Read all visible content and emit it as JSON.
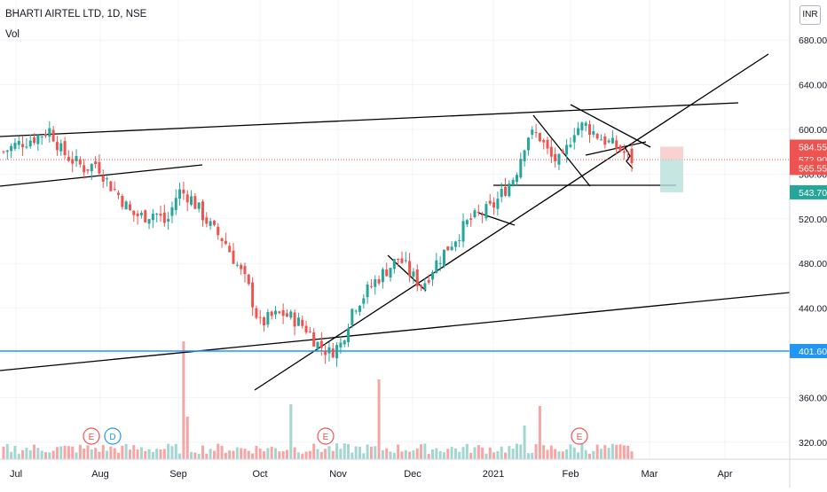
{
  "header": {
    "title": "BHARTI AIRTEL LTD, 1D, NSE",
    "volume_label": "Vol",
    "currency": "INR"
  },
  "colors": {
    "up": "#26a69a",
    "down": "#ef5350",
    "vol_up": "#a3d6d0",
    "vol_down": "#f5a5a3",
    "trendline": "#000000",
    "support": "#2196f3",
    "grid": "#f0f3fa"
  },
  "chart_data": {
    "type": "candlestick",
    "title": "BHARTI AIRTEL LTD, 1D, NSE",
    "ylim": [
      310,
      700
    ],
    "y_ticks": [
      320,
      360,
      400,
      440,
      480,
      520,
      560,
      600,
      640,
      680
    ],
    "x_ticks": [
      "Jul",
      "Aug",
      "Sep",
      "Oct",
      "Nov",
      "Dec",
      "2021",
      "Feb",
      "Mar",
      "Apr"
    ],
    "price_labels": [
      {
        "value": 584.55,
        "color": "#ef5350"
      },
      {
        "value": 572.9,
        "color": "#ef5350"
      },
      {
        "value": 565.55,
        "color": "#ef5350"
      },
      {
        "value": 543.7,
        "color": "#26a69a"
      },
      {
        "value": 401.6,
        "color": "#2196f3"
      }
    ],
    "support_level": 401.6,
    "last_close": 572.9,
    "trade_box": {
      "entry": 572.9,
      "stop": 584.55,
      "target": 543.7
    },
    "events": [
      {
        "label": "E",
        "date": "Aug"
      },
      {
        "label": "D",
        "date": "Aug"
      },
      {
        "label": "E",
        "date": "Oct"
      },
      {
        "label": "E",
        "date": "Feb"
      }
    ],
    "price_path": [
      [
        580,
        577
      ],
      [
        586,
        583
      ],
      [
        590,
        587
      ],
      [
        594,
        591
      ],
      [
        600,
        586
      ],
      [
        580,
        578
      ],
      [
        572,
        566
      ],
      [
        565,
        562
      ],
      [
        570,
        560
      ],
      [
        552,
        546
      ],
      [
        540,
        530
      ],
      [
        524,
        520
      ],
      [
        522,
        529
      ],
      [
        526,
        518
      ],
      [
        515,
        520
      ],
      [
        545,
        568
      ],
      [
        540,
        528
      ],
      [
        525,
        515
      ],
      [
        510,
        505
      ],
      [
        500,
        490
      ],
      [
        480,
        470
      ],
      [
        460,
        440
      ],
      [
        425,
        420
      ],
      [
        432,
        438
      ],
      [
        435,
        428
      ],
      [
        430,
        425
      ],
      [
        422,
        418
      ],
      [
        408,
        400
      ],
      [
        400,
        405
      ],
      [
        408,
        425
      ],
      [
        440,
        445
      ],
      [
        452,
        460
      ],
      [
        465,
        470
      ],
      [
        475,
        480
      ],
      [
        485,
        480
      ],
      [
        470,
        465
      ],
      [
        460,
        470
      ],
      [
        478,
        488
      ],
      [
        492,
        500
      ],
      [
        505,
        512
      ],
      [
        518,
        522
      ],
      [
        524,
        520
      ],
      [
        530,
        540
      ],
      [
        545,
        552
      ],
      [
        560,
        575
      ],
      [
        595,
        608
      ],
      [
        595,
        580
      ],
      [
        575,
        560
      ],
      [
        570,
        582
      ],
      [
        600,
        608
      ],
      [
        604,
        598
      ],
      [
        595,
        590
      ],
      [
        588,
        585
      ],
      [
        582,
        575
      ],
      [
        573,
        572
      ]
    ]
  }
}
